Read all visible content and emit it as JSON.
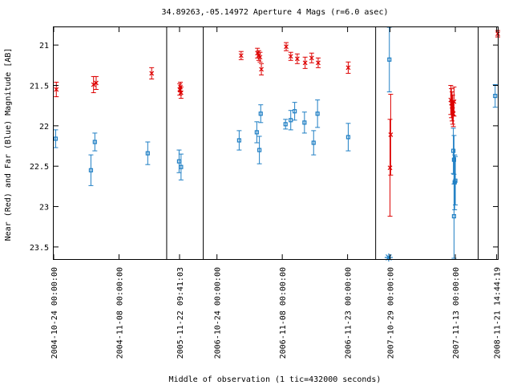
{
  "chart_data": {
    "type": "scatter",
    "title": "34.89263,-05.14972   Aperture 4 Mags (r=6.0 asec)",
    "xlabel": "Middle of observation (1 tic=432000 seconds)",
    "ylabel": "Near (Red) and Far (Blue) Magnitude [AB]",
    "ylim": [
      23.65,
      20.78
    ],
    "y_inverted": true,
    "xlim": [
      0,
      68
    ],
    "grid": false,
    "legend": "none",
    "y_ticks": [
      "21",
      "21.5",
      "22",
      "22.5",
      "23",
      "23.5"
    ],
    "y_tick_values": [
      21,
      21.5,
      22,
      22.5,
      23,
      23.5
    ],
    "x_ticks": [
      {
        "x": 0,
        "label": "2004-10-24 00:00:00"
      },
      {
        "x": 10,
        "label": "2004-11-08 00:00:00"
      },
      {
        "x": 19.27,
        "label": "2005-11-22 09:41:03"
      },
      {
        "x": 25,
        "label": "2006-10-24 00:00:00"
      },
      {
        "x": 35,
        "label": "2006-11-08 00:00:00"
      },
      {
        "x": 45,
        "label": "2006-11-23 00:00:00"
      },
      {
        "x": 51.5,
        "label": "2007-10-29 00:00:00"
      },
      {
        "x": 61.5,
        "label": "2007-11-13 00:00:00"
      },
      {
        "x": 67.83,
        "label": "2008-11-21 14:44:19"
      }
    ],
    "season_breaks": [
      17.3,
      22.9,
      49.3,
      65.0
    ],
    "colors": {
      "near": "#dd0000",
      "far": "#1f7fc4"
    },
    "series": [
      {
        "name": "Near (Red)",
        "color": "#dd0000",
        "marker": "x",
        "points": [
          {
            "x": 0.4,
            "y": 21.55,
            "err": 0.09
          },
          {
            "x": 6.1,
            "y": 21.49,
            "err": 0.1
          },
          {
            "x": 6.5,
            "y": 21.47,
            "err": 0.08
          },
          {
            "x": 15.0,
            "y": 21.35,
            "err": 0.07
          },
          {
            "x": 19.3,
            "y": 21.55,
            "err": 0.07
          },
          {
            "x": 19.5,
            "y": 21.59,
            "err": 0.07
          },
          {
            "x": 19.4,
            "y": 21.52,
            "err": 0.06
          },
          {
            "x": 28.7,
            "y": 21.13,
            "err": 0.05
          },
          {
            "x": 31.2,
            "y": 21.1,
            "err": 0.06
          },
          {
            "x": 31.4,
            "y": 21.13,
            "err": 0.06
          },
          {
            "x": 31.6,
            "y": 21.15,
            "err": 0.06
          },
          {
            "x": 31.8,
            "y": 21.3,
            "err": 0.07
          },
          {
            "x": 35.6,
            "y": 21.02,
            "err": 0.05
          },
          {
            "x": 36.3,
            "y": 21.14,
            "err": 0.05
          },
          {
            "x": 37.3,
            "y": 21.17,
            "err": 0.06
          },
          {
            "x": 38.5,
            "y": 21.22,
            "err": 0.07
          },
          {
            "x": 39.5,
            "y": 21.16,
            "err": 0.06
          },
          {
            "x": 40.5,
            "y": 21.22,
            "err": 0.06
          },
          {
            "x": 45.1,
            "y": 21.28,
            "err": 0.07
          },
          {
            "x": 51.5,
            "y": 22.52,
            "err": 0.6
          },
          {
            "x": 51.6,
            "y": 22.11,
            "err": 0.5
          },
          {
            "x": 60.8,
            "y": 21.68,
            "err": 0.18
          },
          {
            "x": 60.9,
            "y": 21.72,
            "err": 0.18
          },
          {
            "x": 61.0,
            "y": 21.76,
            "err": 0.18
          },
          {
            "x": 61.1,
            "y": 21.8,
            "err": 0.18
          },
          {
            "x": 61.2,
            "y": 21.85,
            "err": 0.16
          },
          {
            "x": 61.3,
            "y": 21.7,
            "err": 0.18
          },
          {
            "x": 68.0,
            "y": 20.86,
            "err": 0.04
          }
        ]
      },
      {
        "name": "Far (Blue)",
        "color": "#1f7fc4",
        "marker": "square",
        "points": [
          {
            "x": 0.3,
            "y": 22.16,
            "err": 0.11
          },
          {
            "x": 5.7,
            "y": 22.55,
            "err": 0.19
          },
          {
            "x": 6.3,
            "y": 22.2,
            "err": 0.11
          },
          {
            "x": 14.4,
            "y": 22.34,
            "err": 0.14
          },
          {
            "x": 19.2,
            "y": 22.44,
            "err": 0.14
          },
          {
            "x": 19.5,
            "y": 22.51,
            "err": 0.16
          },
          {
            "x": 28.4,
            "y": 22.18,
            "err": 0.12
          },
          {
            "x": 31.1,
            "y": 22.08,
            "err": 0.13
          },
          {
            "x": 31.5,
            "y": 22.3,
            "err": 0.17
          },
          {
            "x": 31.7,
            "y": 21.85,
            "err": 0.11
          },
          {
            "x": 35.5,
            "y": 21.98,
            "err": 0.06
          },
          {
            "x": 36.3,
            "y": 21.93,
            "err": 0.12
          },
          {
            "x": 36.9,
            "y": 21.82,
            "err": 0.11
          },
          {
            "x": 38.4,
            "y": 21.96,
            "err": 0.13
          },
          {
            "x": 39.8,
            "y": 22.21,
            "err": 0.15
          },
          {
            "x": 40.4,
            "y": 21.85,
            "err": 0.17
          },
          {
            "x": 45.1,
            "y": 22.14,
            "err": 0.17
          },
          {
            "x": 51.4,
            "y": 21.18,
            "err": 0.4
          },
          {
            "x": 61.2,
            "y": 22.31,
            "err": 0.28
          },
          {
            "x": 61.3,
            "y": 22.42,
            "err": 0.3
          },
          {
            "x": 61.4,
            "y": 22.7,
            "err": 0.34
          },
          {
            "x": 61.5,
            "y": 22.68,
            "err": 0.3
          },
          {
            "x": 61.3,
            "y": 23.12,
            "err": 0.52
          },
          {
            "x": 67.6,
            "y": 21.63,
            "err": 0.14
          }
        ]
      },
      {
        "name": "",
        "color": "#1f7fc4",
        "marker": "asterisk",
        "points": [
          {
            "x": 51.3,
            "y": 23.63
          }
        ]
      }
    ]
  }
}
